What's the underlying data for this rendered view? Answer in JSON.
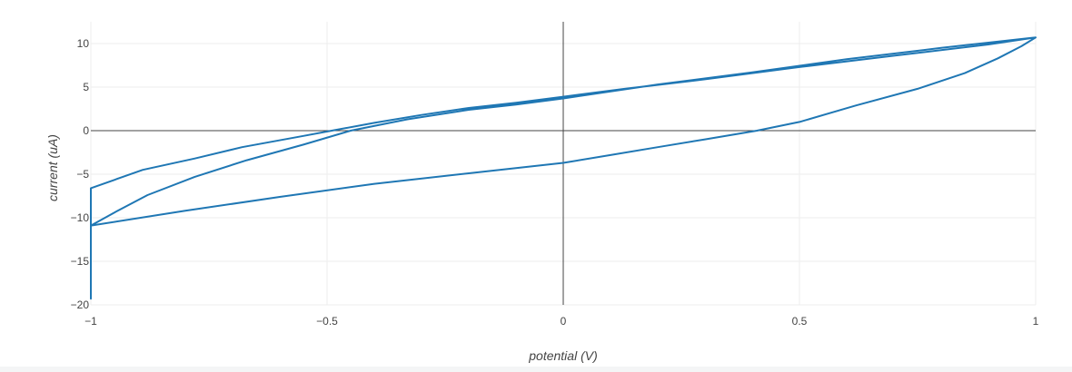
{
  "chart_data": {
    "type": "line",
    "title": "",
    "xlabel": "potential (V)",
    "ylabel": "current (uA)",
    "xlim": [
      -1,
      1
    ],
    "ylim": [
      -20,
      12.5
    ],
    "grid": true,
    "zero_lines": true,
    "x_ticks": [
      {
        "value": -1,
        "label": "−1"
      },
      {
        "value": -0.5,
        "label": "−0.5"
      },
      {
        "value": 0,
        "label": "0"
      },
      {
        "value": 0.5,
        "label": "0.5"
      },
      {
        "value": 1,
        "label": "1"
      }
    ],
    "y_ticks": [
      {
        "value": -20,
        "label": "−20"
      },
      {
        "value": -15,
        "label": "−15"
      },
      {
        "value": -10,
        "label": "−10"
      },
      {
        "value": -5,
        "label": "−5"
      },
      {
        "value": 0,
        "label": "0"
      },
      {
        "value": 5,
        "label": "5"
      },
      {
        "value": 10,
        "label": "10"
      }
    ],
    "series": [
      {
        "color": "#1f77b4",
        "x": [
          -1,
          -1,
          -0.89,
          -0.78,
          -0.68,
          -0.55,
          -0.49,
          -0.4,
          -0.3,
          -0.2,
          -0.1,
          0.0,
          0.13,
          0.3,
          0.5,
          0.7,
          0.9,
          1.0,
          0.97,
          0.92,
          0.85,
          0.75,
          0.62,
          0.5,
          0.41,
          0.3,
          0.2,
          0.1,
          0.0,
          -0.2,
          -0.4,
          -0.6,
          -0.8,
          -1.0,
          -0.95,
          -0.88,
          -0.78,
          -0.67,
          -0.55,
          -0.45,
          -0.33,
          -0.2,
          -0.1,
          0.0,
          0.2,
          0.4,
          0.6,
          0.8,
          1.0
        ],
        "y": [
          -19.3,
          -6.6,
          -4.5,
          -3.2,
          -1.9,
          -0.6,
          0.0,
          0.9,
          1.8,
          2.6,
          3.2,
          3.9,
          4.8,
          5.9,
          7.3,
          8.6,
          9.9,
          10.7,
          9.7,
          8.3,
          6.6,
          4.8,
          2.9,
          1.0,
          0.0,
          -1.0,
          -1.9,
          -2.8,
          -3.7,
          -4.9,
          -6.1,
          -7.6,
          -9.2,
          -10.9,
          -9.4,
          -7.4,
          -5.3,
          -3.4,
          -1.6,
          0.0,
          1.3,
          2.4,
          3.0,
          3.7,
          5.3,
          6.7,
          8.2,
          9.5,
          10.7
        ]
      }
    ]
  }
}
